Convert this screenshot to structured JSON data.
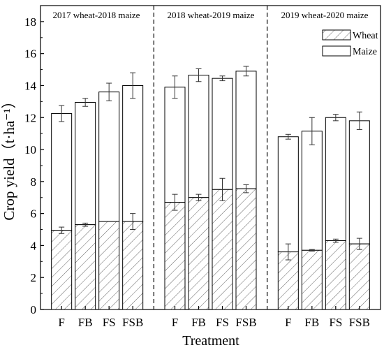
{
  "chart_data": {
    "type": "bar",
    "stacked": true,
    "xlabel": "Treatment",
    "ylabel": "Crop yield（t·ha⁻¹）",
    "ylim": [
      0,
      19
    ],
    "yticks": [
      0,
      2,
      4,
      6,
      8,
      10,
      12,
      14,
      16,
      18
    ],
    "legend": {
      "placement": "top-right",
      "entries": [
        {
          "name": "Wheat",
          "pattern": "hatched"
        },
        {
          "name": "Maize",
          "pattern": "white"
        }
      ]
    },
    "panels": [
      {
        "label": "2017 wheat-2018 maize",
        "categories": [
          "F",
          "FB",
          "FS",
          "FSB"
        ],
        "wheat": [
          4.95,
          5.3,
          5.5,
          5.5
        ],
        "wheat_err": [
          0.2,
          0.1,
          0.0,
          0.5
        ],
        "total": [
          12.25,
          12.95,
          13.6,
          14.0
        ],
        "total_err": [
          0.5,
          0.25,
          0.55,
          0.8
        ]
      },
      {
        "label": "2018 wheat-2019 maize",
        "categories": [
          "F",
          "FB",
          "FS",
          "FSB"
        ],
        "wheat": [
          6.7,
          7.0,
          7.5,
          7.55
        ],
        "wheat_err": [
          0.5,
          0.2,
          0.7,
          0.25
        ],
        "total": [
          13.9,
          14.65,
          14.45,
          14.9
        ],
        "total_err": [
          0.7,
          0.4,
          0.15,
          0.3
        ]
      },
      {
        "label": "2019 wheat-2020 maize",
        "categories": [
          "F",
          "FB",
          "FS",
          "FSB"
        ],
        "wheat": [
          3.6,
          3.7,
          4.3,
          4.1
        ],
        "wheat_err": [
          0.5,
          0.05,
          0.1,
          0.35
        ],
        "total": [
          10.8,
          11.15,
          12.0,
          11.8
        ],
        "total_err": [
          0.15,
          0.85,
          0.2,
          0.55
        ]
      }
    ],
    "grid": false
  }
}
